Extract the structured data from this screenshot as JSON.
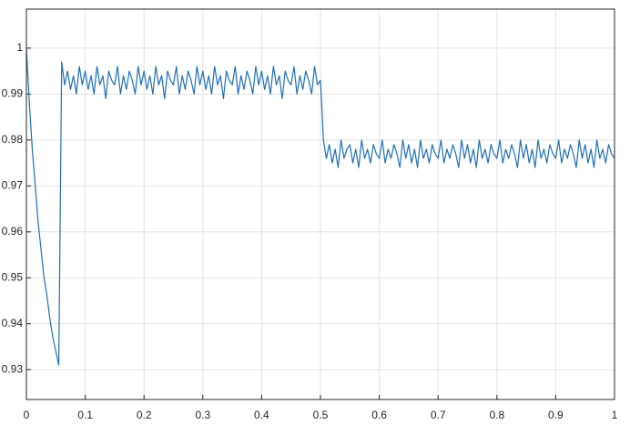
{
  "chart_data": {
    "type": "line",
    "color": "#1f6fbf",
    "grid": true,
    "xlim": [
      0,
      1
    ],
    "ylim": [
      0.9235,
      1.0085
    ],
    "xticks": [
      0,
      0.1,
      0.2,
      0.3,
      0.4,
      0.5,
      0.6,
      0.7,
      0.8,
      0.9,
      1
    ],
    "yticks": [
      0.93,
      0.94,
      0.95,
      0.96,
      0.97,
      0.98,
      0.99,
      1
    ],
    "x": [
      0,
      0.005,
      0.01,
      0.015,
      0.02,
      0.025,
      0.03,
      0.035,
      0.04,
      0.045,
      0.05,
      0.055,
      0.06,
      0.065,
      0.07,
      0.075,
      0.08,
      0.085,
      0.09,
      0.095,
      0.1,
      0.105,
      0.11,
      0.115,
      0.12,
      0.125,
      0.13,
      0.135,
      0.14,
      0.145,
      0.15,
      0.155,
      0.16,
      0.165,
      0.17,
      0.175,
      0.18,
      0.185,
      0.19,
      0.195,
      0.2,
      0.205,
      0.21,
      0.215,
      0.22,
      0.225,
      0.23,
      0.235,
      0.24,
      0.245,
      0.25,
      0.255,
      0.26,
      0.265,
      0.27,
      0.275,
      0.28,
      0.285,
      0.29,
      0.295,
      0.3,
      0.305,
      0.31,
      0.315,
      0.32,
      0.325,
      0.33,
      0.335,
      0.34,
      0.345,
      0.35,
      0.355,
      0.36,
      0.365,
      0.37,
      0.375,
      0.38,
      0.385,
      0.39,
      0.395,
      0.4,
      0.405,
      0.41,
      0.415,
      0.42,
      0.425,
      0.43,
      0.435,
      0.44,
      0.445,
      0.45,
      0.455,
      0.46,
      0.465,
      0.47,
      0.475,
      0.48,
      0.485,
      0.49,
      0.495,
      0.5,
      0.505,
      0.51,
      0.515,
      0.52,
      0.525,
      0.53,
      0.535,
      0.54,
      0.545,
      0.55,
      0.555,
      0.56,
      0.565,
      0.57,
      0.575,
      0.58,
      0.585,
      0.59,
      0.595,
      0.6,
      0.605,
      0.61,
      0.615,
      0.62,
      0.625,
      0.63,
      0.635,
      0.64,
      0.645,
      0.65,
      0.655,
      0.66,
      0.665,
      0.67,
      0.675,
      0.68,
      0.685,
      0.69,
      0.695,
      0.7,
      0.705,
      0.71,
      0.715,
      0.72,
      0.725,
      0.73,
      0.735,
      0.74,
      0.745,
      0.75,
      0.755,
      0.76,
      0.765,
      0.77,
      0.775,
      0.78,
      0.785,
      0.79,
      0.795,
      0.8,
      0.805,
      0.81,
      0.815,
      0.82,
      0.825,
      0.83,
      0.835,
      0.84,
      0.845,
      0.85,
      0.855,
      0.86,
      0.865,
      0.87,
      0.875,
      0.88,
      0.885,
      0.89,
      0.895,
      0.9,
      0.905,
      0.91,
      0.915,
      0.92,
      0.925,
      0.93,
      0.935,
      0.94,
      0.945,
      0.95,
      0.955,
      0.96,
      0.965,
      0.97,
      0.975,
      0.98,
      0.985,
      0.99,
      0.995,
      1
    ],
    "values": [
      1,
      0.988,
      0.978,
      0.97,
      0.962,
      0.956,
      0.95,
      0.946,
      0.941,
      0.937,
      0.934,
      0.931,
      0.997,
      0.992,
      0.995,
      0.991,
      0.994,
      0.99,
      0.996,
      0.992,
      0.995,
      0.991,
      0.994,
      0.99,
      0.996,
      0.992,
      0.994,
      0.989,
      0.995,
      0.993,
      0.992,
      0.996,
      0.99,
      0.994,
      0.991,
      0.995,
      0.993,
      0.99,
      0.996,
      0.992,
      0.995,
      0.991,
      0.994,
      0.99,
      0.996,
      0.992,
      0.994,
      0.989,
      0.995,
      0.993,
      0.992,
      0.996,
      0.99,
      0.994,
      0.991,
      0.995,
      0.993,
      0.99,
      0.996,
      0.992,
      0.995,
      0.991,
      0.994,
      0.99,
      0.996,
      0.992,
      0.994,
      0.989,
      0.995,
      0.993,
      0.992,
      0.996,
      0.99,
      0.994,
      0.991,
      0.995,
      0.993,
      0.99,
      0.996,
      0.992,
      0.995,
      0.991,
      0.994,
      0.99,
      0.996,
      0.992,
      0.994,
      0.989,
      0.995,
      0.993,
      0.992,
      0.996,
      0.99,
      0.994,
      0.991,
      0.995,
      0.993,
      0.99,
      0.996,
      0.992,
      0.993,
      0.98,
      0.976,
      0.979,
      0.975,
      0.978,
      0.974,
      0.98,
      0.976,
      0.978,
      0.979,
      0.975,
      0.978,
      0.974,
      0.98,
      0.976,
      0.978,
      0.975,
      0.979,
      0.977,
      0.976,
      0.98,
      0.975,
      0.978,
      0.976,
      0.979,
      0.977,
      0.974,
      0.98,
      0.976,
      0.979,
      0.975,
      0.978,
      0.974,
      0.98,
      0.976,
      0.978,
      0.975,
      0.979,
      0.977,
      0.976,
      0.98,
      0.975,
      0.978,
      0.976,
      0.979,
      0.977,
      0.974,
      0.98,
      0.976,
      0.979,
      0.975,
      0.978,
      0.974,
      0.98,
      0.976,
      0.978,
      0.975,
      0.979,
      0.977,
      0.976,
      0.98,
      0.975,
      0.978,
      0.976,
      0.979,
      0.977,
      0.974,
      0.98,
      0.976,
      0.979,
      0.975,
      0.978,
      0.974,
      0.98,
      0.976,
      0.978,
      0.975,
      0.979,
      0.977,
      0.976,
      0.98,
      0.975,
      0.978,
      0.976,
      0.979,
      0.977,
      0.974,
      0.98,
      0.976,
      0.979,
      0.975,
      0.978,
      0.974,
      0.98,
      0.976,
      0.978,
      0.975,
      0.979,
      0.977,
      0.976
    ]
  }
}
